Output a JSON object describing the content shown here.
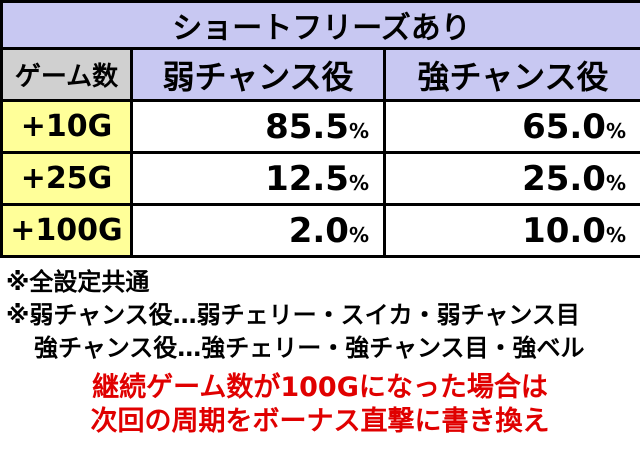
{
  "header": {
    "title": "ショートフリーズあり"
  },
  "table": {
    "columns": [
      "ゲーム数",
      "弱チャンス役",
      "強チャンス役"
    ],
    "rows": [
      [
        "+10G",
        "85.5%",
        "65.0%"
      ],
      [
        "+25G",
        "12.5%",
        "25.0%"
      ],
      [
        "+100G",
        "2.0%",
        "10.0%"
      ]
    ]
  },
  "notes": [
    "※全設定共通",
    "※弱チャンス役…弱チェリー・スイカ・弱チャンス目",
    "強チャンス役…強チェリー・強チャンス目・強ベル"
  ],
  "highlight": [
    "継続ゲーム数が100Gになった場合は",
    "次回の周期をボーナス直撃に書き換え"
  ]
}
